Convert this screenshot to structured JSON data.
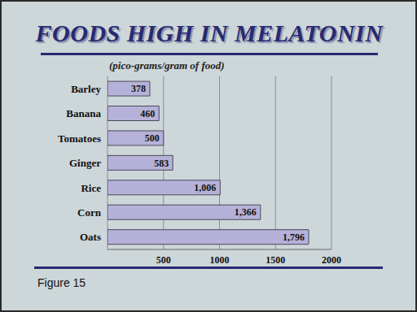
{
  "chart_data": {
    "type": "bar",
    "orientation": "horizontal",
    "title": "FOODS HIGH IN MELATONIN",
    "subtitle": "(pico-grams/gram of food)",
    "caption": "Figure 15",
    "categories": [
      "Barley",
      "Banana",
      "Tomatoes",
      "Ginger",
      "Rice",
      "Corn",
      "Oats"
    ],
    "values": [
      378,
      460,
      500,
      583,
      1006,
      1366,
      1796
    ],
    "value_labels": [
      "378",
      "460",
      "500",
      "583",
      "1,006",
      "1,366",
      "1,796"
    ],
    "data_labels": true,
    "color": "#b6b1d8",
    "xlim": [
      0,
      2000
    ],
    "xticks": [
      500,
      1000,
      1500,
      2000
    ],
    "grid": true
  }
}
